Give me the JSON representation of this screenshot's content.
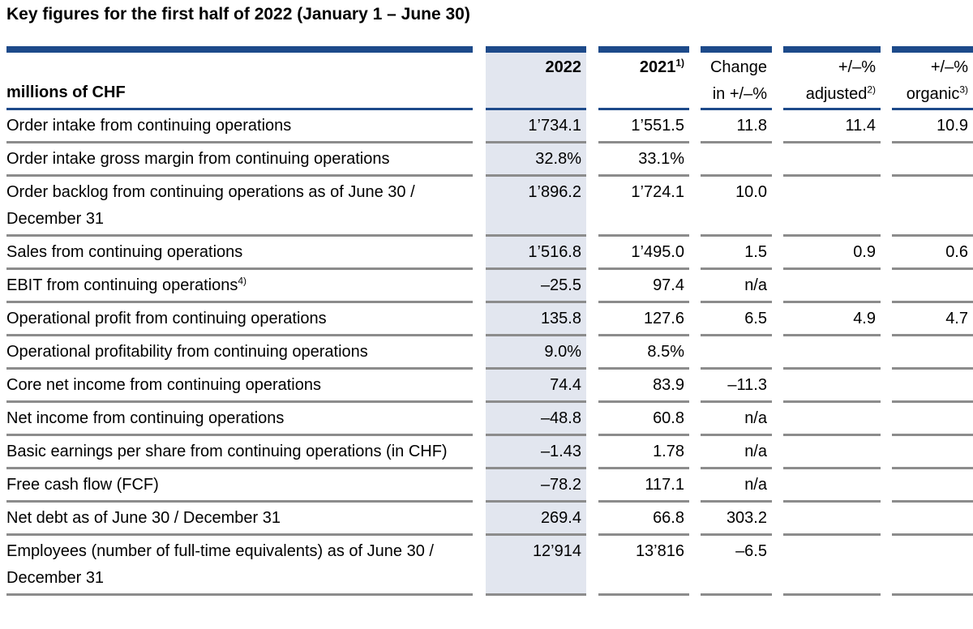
{
  "page": {
    "title": "Key figures for the first half of 2022 (January 1 – June 30)"
  },
  "colors": {
    "accent_navy": "#1d4a8a",
    "column_shade": "#e2e6ef",
    "row_separator": "#8c8c8c",
    "text": "#000000",
    "background": "#ffffff"
  },
  "table": {
    "unit_label": "millions of CHF",
    "columns": [
      {
        "id": "label",
        "line1": "",
        "line2": ""
      },
      {
        "id": "y2022",
        "line1": "2022",
        "bold": true,
        "shaded": true
      },
      {
        "id": "y2021",
        "line1": "2021",
        "line1_sup": "1)",
        "bold": true
      },
      {
        "id": "change",
        "line1": "Change",
        "line2": "in +/–%"
      },
      {
        "id": "adjusted",
        "line1": "+/–%",
        "line2": "adjusted",
        "line2_sup": "2)"
      },
      {
        "id": "organic",
        "line1": "+/–%",
        "line2": "organic",
        "line2_sup": "3)"
      }
    ],
    "rows": [
      {
        "label": "Order intake from continuing operations",
        "values": [
          "1’734.1",
          "1’551.5",
          "11.8",
          "11.4",
          "10.9"
        ]
      },
      {
        "label": "Order intake gross margin from continuing operations",
        "values": [
          "32.8%",
          "33.1%",
          "",
          "",
          ""
        ]
      },
      {
        "label": "Order backlog from continuing operations as of June 30 / December 31",
        "values": [
          "1’896.2",
          "1’724.1",
          "10.0",
          "",
          ""
        ]
      },
      {
        "label": "Sales from continuing operations",
        "values": [
          "1’516.8",
          "1’495.0",
          "1.5",
          "0.9",
          "0.6"
        ]
      },
      {
        "label": "EBIT from continuing operations",
        "label_sup": "4)",
        "values": [
          "–25.5",
          "97.4",
          "n/a",
          "",
          ""
        ]
      },
      {
        "label": "Operational profit from continuing operations",
        "values": [
          "135.8",
          "127.6",
          "6.5",
          "4.9",
          "4.7"
        ]
      },
      {
        "label": "Operational profitability from continuing operations",
        "values": [
          "9.0%",
          "8.5%",
          "",
          "",
          ""
        ]
      },
      {
        "label": "Core net income from continuing operations",
        "values": [
          "74.4",
          "83.9",
          "–11.3",
          "",
          ""
        ]
      },
      {
        "label": "Net income from continuing operations",
        "values": [
          "–48.8",
          "60.8",
          "n/a",
          "",
          ""
        ]
      },
      {
        "label": "Basic earnings per share from continuing operations (in CHF)",
        "values": [
          "–1.43",
          "1.78",
          "n/a",
          "",
          ""
        ]
      },
      {
        "label": "Free cash flow (FCF)",
        "values": [
          "–78.2",
          "117.1",
          "n/a",
          "",
          ""
        ]
      },
      {
        "label": "Net debt as of June 30 / December 31",
        "values": [
          "269.4",
          "66.8",
          "303.2",
          "",
          ""
        ]
      },
      {
        "label": "Employees (number of full-time equivalents) as of June 30 / December 31",
        "values": [
          "12’914",
          "13’816",
          "–6.5",
          "",
          ""
        ]
      }
    ]
  }
}
